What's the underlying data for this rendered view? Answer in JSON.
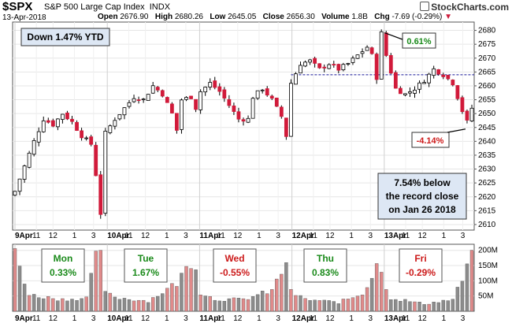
{
  "header": {
    "symbol": "$SPX",
    "name": "S&P 500 Large Cap Index",
    "exchange": "INDX",
    "date": "13-Apr-2018",
    "open_label": "Open",
    "open": "2676.90",
    "high_label": "High",
    "high": "2680.26",
    "low_label": "Low",
    "low": "2645.05",
    "close_label": "Close",
    "close": "2656.30",
    "volume_label": "Volume",
    "volume": "1.8B",
    "chg_label": "Chg",
    "chg": "-7.69 (-0.29%)",
    "logo": "StockCharts.com"
  },
  "annotations": {
    "ytd": "Down 1.47% YTD",
    "high_pct": "0.61%",
    "low_pct": "-4.14%",
    "record_line1": "7.54% below",
    "record_line2": "the record close",
    "record_line3": "on Jan 26 2018"
  },
  "days": [
    {
      "name": "Mon",
      "pct": "0.33%",
      "color": "#1a8a1a"
    },
    {
      "name": "Tue",
      "pct": "1.67%",
      "color": "#1a8a1a"
    },
    {
      "name": "Wed",
      "pct": "-0.55%",
      "color": "#cc1a1a"
    },
    {
      "name": "Thu",
      "pct": "0.83%",
      "color": "#1a8a1a"
    },
    {
      "name": "Fri",
      "pct": "-0.29%",
      "color": "#cc1a1a"
    }
  ],
  "colors": {
    "up": "#ffffff",
    "down": "#d11a3a",
    "vol_up": "#8c8c8c",
    "vol_down": "#e08a8a",
    "box_fill": "#dde7f4",
    "grid": "#e6e6e6",
    "reference": "#1a1a99"
  },
  "chart_data": {
    "type": "candlestick",
    "title": "$SPX S&P 500 Large Cap Index INDX",
    "price_axis": {
      "ylim": [
        2608,
        2683
      ],
      "ticks": [
        2610,
        2615,
        2620,
        2625,
        2630,
        2635,
        2640,
        2645,
        2650,
        2655,
        2660,
        2665,
        2670,
        2675,
        2680
      ]
    },
    "volume_axis": {
      "ylim": [
        0,
        220
      ],
      "ticks": [
        50,
        100,
        150,
        200
      ],
      "tick_labels": [
        "50M",
        "100M",
        "150M",
        "200M"
      ]
    },
    "x_tick_labels": [
      "9Apr",
      "11",
      "12",
      "1",
      "3",
      "10Apr",
      "11",
      "12",
      "1",
      "3",
      "11Apr",
      "11",
      "12",
      "1",
      "3",
      "12Apr",
      "11",
      "12",
      "1",
      "3",
      "13Apr",
      "11",
      "12",
      "1",
      "3"
    ],
    "reference_line": 2664,
    "close_points": [
      [
        0,
        2622
      ],
      [
        2,
        2631
      ],
      [
        4,
        2640
      ],
      [
        6,
        2648
      ],
      [
        8,
        2646
      ],
      [
        10,
        2650
      ],
      [
        12,
        2647
      ],
      [
        14,
        2642
      ],
      [
        16,
        2639
      ],
      [
        17,
        2628
      ],
      [
        18,
        2614
      ],
      [
        19,
        2643
      ],
      [
        21,
        2648
      ],
      [
        23,
        2652
      ],
      [
        25,
        2656
      ],
      [
        27,
        2655
      ],
      [
        29,
        2660
      ],
      [
        31,
        2657
      ],
      [
        33,
        2650
      ],
      [
        34,
        2644
      ],
      [
        35,
        2655
      ],
      [
        37,
        2656
      ],
      [
        38,
        2652
      ],
      [
        39,
        2658
      ],
      [
        41,
        2661
      ],
      [
        43,
        2658
      ],
      [
        45,
        2653
      ],
      [
        47,
        2648
      ],
      [
        49,
        2648
      ],
      [
        50,
        2656
      ],
      [
        52,
        2659
      ],
      [
        54,
        2655
      ],
      [
        56,
        2649
      ],
      [
        57,
        2642
      ],
      [
        58,
        2661
      ],
      [
        60,
        2668
      ],
      [
        62,
        2669
      ],
      [
        64,
        2666
      ],
      [
        66,
        2668
      ],
      [
        68,
        2666
      ],
      [
        70,
        2668
      ],
      [
        72,
        2671
      ],
      [
        74,
        2674
      ],
      [
        75,
        2671
      ],
      [
        76,
        2663
      ],
      [
        77,
        2679
      ],
      [
        78,
        2671
      ],
      [
        80,
        2659
      ],
      [
        82,
        2657
      ],
      [
        84,
        2659
      ],
      [
        86,
        2662
      ],
      [
        88,
        2666
      ],
      [
        90,
        2664
      ],
      [
        92,
        2661
      ],
      [
        94,
        2651
      ],
      [
        95,
        2647
      ],
      [
        96,
        2652
      ]
    ],
    "volume_points": [
      [
        0,
        205
      ],
      [
        3,
        55
      ],
      [
        10,
        40
      ],
      [
        15,
        45
      ],
      [
        17,
        180
      ],
      [
        18,
        220
      ],
      [
        19,
        60
      ],
      [
        22,
        45
      ],
      [
        28,
        35
      ],
      [
        34,
        95
      ],
      [
        37,
        170
      ],
      [
        38,
        150
      ],
      [
        39,
        65
      ],
      [
        42,
        40
      ],
      [
        48,
        40
      ],
      [
        54,
        70
      ],
      [
        56,
        130
      ],
      [
        57,
        175
      ],
      [
        58,
        65
      ],
      [
        61,
        40
      ],
      [
        68,
        30
      ],
      [
        73,
        60
      ],
      [
        75,
        120
      ],
      [
        76,
        170
      ],
      [
        77,
        125
      ],
      [
        79,
        45
      ],
      [
        86,
        25
      ],
      [
        92,
        40
      ],
      [
        94,
        105
      ],
      [
        95,
        150
      ],
      [
        96,
        180
      ]
    ]
  }
}
